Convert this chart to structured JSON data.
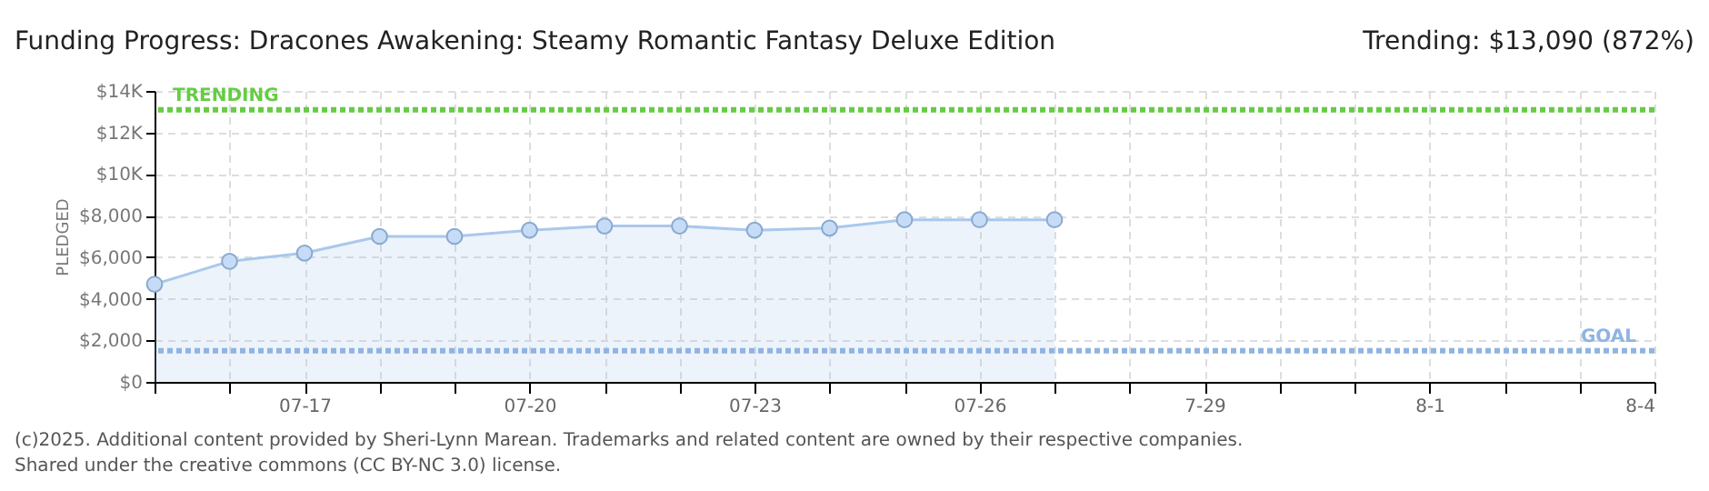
{
  "chart_data": {
    "type": "area",
    "title": "Funding Progress: Dracones Awakening: Steamy Romantic Fantasy Deluxe Edition",
    "ylabel": "PLEDGED",
    "x": [
      "2025-07-15",
      "2025-07-16",
      "2025-07-17",
      "2025-07-18",
      "2025-07-19",
      "2025-07-20",
      "2025-07-21",
      "2025-07-22",
      "2025-07-23",
      "2025-07-24",
      "2025-07-25",
      "2025-07-26",
      "2025-07-27"
    ],
    "series": [
      {
        "color": "#a9c8ec",
        "values": [
          4700,
          5800,
          6200,
          7000,
          7000,
          7300,
          7500,
          7500,
          7300,
          7400,
          7800,
          7800,
          7800
        ]
      }
    ],
    "marker": "circle",
    "xlim": [
      "2025-07-15",
      "2025-08-04"
    ],
    "xticks": [
      {
        "value": "2025-07-15",
        "label": null
      },
      {
        "value": "2025-07-16",
        "label": null
      },
      {
        "value": "2025-07-17",
        "label": "07-17"
      },
      {
        "value": "2025-07-18",
        "label": null
      },
      {
        "value": "2025-07-19",
        "label": null
      },
      {
        "value": "2025-07-20",
        "label": "07-20"
      },
      {
        "value": "2025-07-21",
        "label": null
      },
      {
        "value": "2025-07-22",
        "label": null
      },
      {
        "value": "2025-07-23",
        "label": "07-23"
      },
      {
        "value": "2025-07-24",
        "label": null
      },
      {
        "value": "2025-07-25",
        "label": null
      },
      {
        "value": "2025-07-26",
        "label": "07-26"
      },
      {
        "value": "2025-07-27",
        "label": null
      },
      {
        "value": "2025-07-28",
        "label": null
      },
      {
        "value": "2025-07-29",
        "label": "7-29"
      },
      {
        "value": "2025-07-30",
        "label": null
      },
      {
        "value": "2025-07-31",
        "label": null
      },
      {
        "value": "2025-08-01",
        "label": "8-1"
      },
      {
        "value": "2025-08-02",
        "label": null
      },
      {
        "value": "2025-08-03",
        "label": null
      },
      {
        "value": "2025-08-04",
        "label": "8-4"
      }
    ],
    "ylim": [
      0,
      14000
    ],
    "yticks": [
      {
        "value": 0,
        "label": "$0"
      },
      {
        "value": 2000,
        "label": "$2,000"
      },
      {
        "value": 4000,
        "label": "$4,000"
      },
      {
        "value": 6000,
        "label": "$6,000"
      },
      {
        "value": 8000,
        "label": "$8,000"
      },
      {
        "value": 10000,
        "label": "$10K"
      },
      {
        "value": 12000,
        "label": "$12K"
      },
      {
        "value": 14000,
        "label": "$14K"
      }
    ],
    "grid": true,
    "ref_lines": [
      {
        "axis": "y",
        "value": 13090,
        "label": "TRENDING",
        "color": "#66cc44",
        "line_style": "dotted"
      },
      {
        "axis": "y",
        "value": 1500,
        "label": "GOAL",
        "color": "#8fb4e3",
        "line_style": "dotted"
      }
    ],
    "annotations": [
      "Trending:  $13,090 (872%)",
      "(c)2025. Additional content provided by Sheri-Lynn Marean. Trademarks and related content are owned by their respective companies.",
      "Shared under the creative commons (CC BY-NC 3.0) license."
    ]
  }
}
